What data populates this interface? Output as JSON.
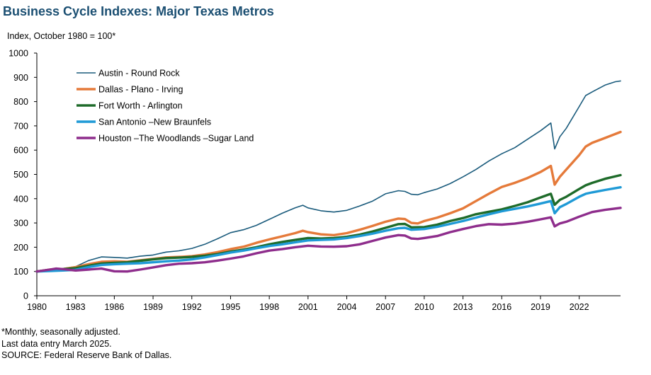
{
  "chart_data": {
    "type": "line",
    "title": "Business Cycle Indexes: Major Texas Metros",
    "ylabel": "Index, October 1980 = 100*",
    "xlabel": "",
    "ylim": [
      0,
      1000
    ],
    "xlim": [
      1980,
      2025.2
    ],
    "y_ticks": [
      0,
      100,
      200,
      300,
      400,
      500,
      600,
      700,
      800,
      900,
      1000
    ],
    "x_ticks": [
      1980,
      1983,
      1986,
      1989,
      1992,
      1995,
      1998,
      2001,
      2004,
      2007,
      2010,
      2013,
      2016,
      2019,
      2022
    ],
    "legend_position": "top-left",
    "series": [
      {
        "name": "Austin - Round Rock",
        "color": "#1a5b7c",
        "width": 1.6,
        "points": [
          [
            1980.0,
            100
          ],
          [
            1981.0,
            105
          ],
          [
            1982.0,
            112
          ],
          [
            1983.0,
            120
          ],
          [
            1984.0,
            145
          ],
          [
            1985.0,
            160
          ],
          [
            1986.0,
            158
          ],
          [
            1987.0,
            155
          ],
          [
            1988.0,
            163
          ],
          [
            1989.0,
            168
          ],
          [
            1990.0,
            180
          ],
          [
            1991.0,
            185
          ],
          [
            1992.0,
            195
          ],
          [
            1993.0,
            212
          ],
          [
            1994.0,
            235
          ],
          [
            1995.0,
            260
          ],
          [
            1996.0,
            272
          ],
          [
            1997.0,
            290
          ],
          [
            1998.0,
            315
          ],
          [
            1999.0,
            340
          ],
          [
            2000.0,
            362
          ],
          [
            2000.6,
            373
          ],
          [
            2001.0,
            362
          ],
          [
            2002.0,
            350
          ],
          [
            2003.0,
            345
          ],
          [
            2004.0,
            352
          ],
          [
            2005.0,
            370
          ],
          [
            2006.0,
            390
          ],
          [
            2007.0,
            420
          ],
          [
            2008.0,
            433
          ],
          [
            2008.5,
            430
          ],
          [
            2009.0,
            418
          ],
          [
            2009.5,
            416
          ],
          [
            2010.0,
            425
          ],
          [
            2011.0,
            440
          ],
          [
            2012.0,
            462
          ],
          [
            2013.0,
            490
          ],
          [
            2014.0,
            520
          ],
          [
            2015.0,
            555
          ],
          [
            2016.0,
            585
          ],
          [
            2017.0,
            610
          ],
          [
            2018.0,
            645
          ],
          [
            2019.0,
            680
          ],
          [
            2019.8,
            712
          ],
          [
            2020.1,
            605
          ],
          [
            2020.5,
            655
          ],
          [
            2021.0,
            690
          ],
          [
            2022.0,
            780
          ],
          [
            2022.5,
            825
          ],
          [
            2023.0,
            840
          ],
          [
            2024.0,
            868
          ],
          [
            2024.8,
            882
          ],
          [
            2025.2,
            885
          ]
        ]
      },
      {
        "name": "Dallas - Plano - Irving",
        "color": "#e57a3a",
        "width": 3.4,
        "points": [
          [
            1980.0,
            100
          ],
          [
            1981.0,
            108
          ],
          [
            1982.0,
            110
          ],
          [
            1983.0,
            118
          ],
          [
            1984.0,
            130
          ],
          [
            1985.0,
            140
          ],
          [
            1986.0,
            142
          ],
          [
            1987.0,
            140
          ],
          [
            1988.0,
            146
          ],
          [
            1989.0,
            152
          ],
          [
            1990.0,
            158
          ],
          [
            1991.0,
            160
          ],
          [
            1992.0,
            163
          ],
          [
            1993.0,
            170
          ],
          [
            1994.0,
            180
          ],
          [
            1995.0,
            192
          ],
          [
            1996.0,
            202
          ],
          [
            1997.0,
            218
          ],
          [
            1998.0,
            232
          ],
          [
            1999.0,
            245
          ],
          [
            2000.0,
            258
          ],
          [
            2000.6,
            268
          ],
          [
            2001.0,
            262
          ],
          [
            2002.0,
            253
          ],
          [
            2003.0,
            250
          ],
          [
            2004.0,
            258
          ],
          [
            2005.0,
            272
          ],
          [
            2006.0,
            288
          ],
          [
            2007.0,
            305
          ],
          [
            2008.0,
            318
          ],
          [
            2008.5,
            316
          ],
          [
            2009.0,
            300
          ],
          [
            2009.5,
            298
          ],
          [
            2010.0,
            308
          ],
          [
            2011.0,
            322
          ],
          [
            2012.0,
            340
          ],
          [
            2013.0,
            360
          ],
          [
            2014.0,
            390
          ],
          [
            2015.0,
            420
          ],
          [
            2016.0,
            448
          ],
          [
            2017.0,
            465
          ],
          [
            2018.0,
            485
          ],
          [
            2019.0,
            510
          ],
          [
            2019.8,
            535
          ],
          [
            2020.1,
            458
          ],
          [
            2020.5,
            490
          ],
          [
            2021.0,
            520
          ],
          [
            2022.0,
            580
          ],
          [
            2022.5,
            615
          ],
          [
            2023.0,
            630
          ],
          [
            2024.0,
            650
          ],
          [
            2025.2,
            675
          ]
        ]
      },
      {
        "name": "Fort Worth - Arlington",
        "color": "#1e6b2a",
        "width": 3.4,
        "points": [
          [
            1980.0,
            100
          ],
          [
            1981.0,
            107
          ],
          [
            1982.0,
            110
          ],
          [
            1983.0,
            114
          ],
          [
            1984.0,
            124
          ],
          [
            1985.0,
            133
          ],
          [
            1986.0,
            136
          ],
          [
            1987.0,
            138
          ],
          [
            1988.0,
            144
          ],
          [
            1989.0,
            150
          ],
          [
            1990.0,
            155
          ],
          [
            1991.0,
            157
          ],
          [
            1992.0,
            160
          ],
          [
            1993.0,
            165
          ],
          [
            1994.0,
            172
          ],
          [
            1995.0,
            182
          ],
          [
            1996.0,
            190
          ],
          [
            1997.0,
            200
          ],
          [
            1998.0,
            212
          ],
          [
            1999.0,
            222
          ],
          [
            2000.0,
            230
          ],
          [
            2001.0,
            238
          ],
          [
            2002.0,
            236
          ],
          [
            2003.0,
            238
          ],
          [
            2004.0,
            243
          ],
          [
            2005.0,
            252
          ],
          [
            2006.0,
            265
          ],
          [
            2007.0,
            280
          ],
          [
            2008.0,
            295
          ],
          [
            2008.5,
            296
          ],
          [
            2009.0,
            282
          ],
          [
            2010.0,
            283
          ],
          [
            2011.0,
            293
          ],
          [
            2012.0,
            308
          ],
          [
            2013.0,
            320
          ],
          [
            2014.0,
            336
          ],
          [
            2015.0,
            346
          ],
          [
            2016.0,
            356
          ],
          [
            2017.0,
            370
          ],
          [
            2018.0,
            385
          ],
          [
            2019.0,
            405
          ],
          [
            2019.8,
            420
          ],
          [
            2020.1,
            375
          ],
          [
            2020.5,
            395
          ],
          [
            2021.0,
            408
          ],
          [
            2022.0,
            440
          ],
          [
            2022.5,
            455
          ],
          [
            2023.0,
            465
          ],
          [
            2024.0,
            482
          ],
          [
            2025.2,
            497
          ]
        ]
      },
      {
        "name": "San Antonio –New Braunfels",
        "color": "#1f9ad6",
        "width": 3.4,
        "points": [
          [
            1980.0,
            100
          ],
          [
            1981.0,
            102
          ],
          [
            1982.0,
            104
          ],
          [
            1983.0,
            107
          ],
          [
            1984.0,
            118
          ],
          [
            1985.0,
            127
          ],
          [
            1986.0,
            130
          ],
          [
            1987.0,
            132
          ],
          [
            1988.0,
            134
          ],
          [
            1989.0,
            138
          ],
          [
            1990.0,
            142
          ],
          [
            1991.0,
            145
          ],
          [
            1992.0,
            150
          ],
          [
            1993.0,
            158
          ],
          [
            1994.0,
            168
          ],
          [
            1995.0,
            178
          ],
          [
            1996.0,
            186
          ],
          [
            1997.0,
            196
          ],
          [
            1998.0,
            205
          ],
          [
            1999.0,
            212
          ],
          [
            2000.0,
            220
          ],
          [
            2001.0,
            228
          ],
          [
            2002.0,
            230
          ],
          [
            2003.0,
            232
          ],
          [
            2004.0,
            238
          ],
          [
            2005.0,
            246
          ],
          [
            2006.0,
            256
          ],
          [
            2007.0,
            268
          ],
          [
            2008.0,
            278
          ],
          [
            2008.5,
            280
          ],
          [
            2009.0,
            272
          ],
          [
            2010.0,
            275
          ],
          [
            2011.0,
            284
          ],
          [
            2012.0,
            296
          ],
          [
            2013.0,
            308
          ],
          [
            2014.0,
            322
          ],
          [
            2015.0,
            336
          ],
          [
            2016.0,
            348
          ],
          [
            2017.0,
            358
          ],
          [
            2018.0,
            368
          ],
          [
            2019.0,
            380
          ],
          [
            2019.8,
            390
          ],
          [
            2020.1,
            340
          ],
          [
            2020.5,
            365
          ],
          [
            2021.0,
            378
          ],
          [
            2022.0,
            408
          ],
          [
            2022.5,
            420
          ],
          [
            2023.0,
            426
          ],
          [
            2024.0,
            436
          ],
          [
            2025.2,
            447
          ]
        ]
      },
      {
        "name": "Houston –The Woodlands –Sugar Land",
        "color": "#8e2d8c",
        "width": 3.4,
        "points": [
          [
            1980.0,
            100
          ],
          [
            1981.0,
            108
          ],
          [
            1981.5,
            112
          ],
          [
            1982.0,
            110
          ],
          [
            1983.0,
            104
          ],
          [
            1984.0,
            108
          ],
          [
            1985.0,
            112
          ],
          [
            1986.0,
            101
          ],
          [
            1987.0,
            100
          ],
          [
            1988.0,
            108
          ],
          [
            1989.0,
            117
          ],
          [
            1990.0,
            126
          ],
          [
            1991.0,
            132
          ],
          [
            1992.0,
            134
          ],
          [
            1993.0,
            138
          ],
          [
            1994.0,
            145
          ],
          [
            1995.0,
            153
          ],
          [
            1996.0,
            162
          ],
          [
            1997.0,
            175
          ],
          [
            1998.0,
            186
          ],
          [
            1999.0,
            192
          ],
          [
            2000.0,
            200
          ],
          [
            2001.0,
            206
          ],
          [
            2002.0,
            203
          ],
          [
            2003.0,
            202
          ],
          [
            2004.0,
            204
          ],
          [
            2005.0,
            212
          ],
          [
            2006.0,
            226
          ],
          [
            2007.0,
            240
          ],
          [
            2008.0,
            250
          ],
          [
            2008.5,
            248
          ],
          [
            2009.0,
            236
          ],
          [
            2009.5,
            234
          ],
          [
            2010.0,
            238
          ],
          [
            2011.0,
            246
          ],
          [
            2012.0,
            262
          ],
          [
            2013.0,
            275
          ],
          [
            2014.0,
            287
          ],
          [
            2015.0,
            295
          ],
          [
            2016.0,
            293
          ],
          [
            2017.0,
            297
          ],
          [
            2018.0,
            305
          ],
          [
            2019.0,
            315
          ],
          [
            2019.8,
            323
          ],
          [
            2020.1,
            286
          ],
          [
            2020.5,
            298
          ],
          [
            2021.0,
            305
          ],
          [
            2022.0,
            326
          ],
          [
            2023.0,
            345
          ],
          [
            2024.0,
            354
          ],
          [
            2025.2,
            362
          ]
        ]
      }
    ]
  },
  "notes": [
    "*Monthly, seasonally adjusted.",
    "Last data entry March 2025.",
    "SOURCE: Federal Reserve Bank of Dallas."
  ]
}
